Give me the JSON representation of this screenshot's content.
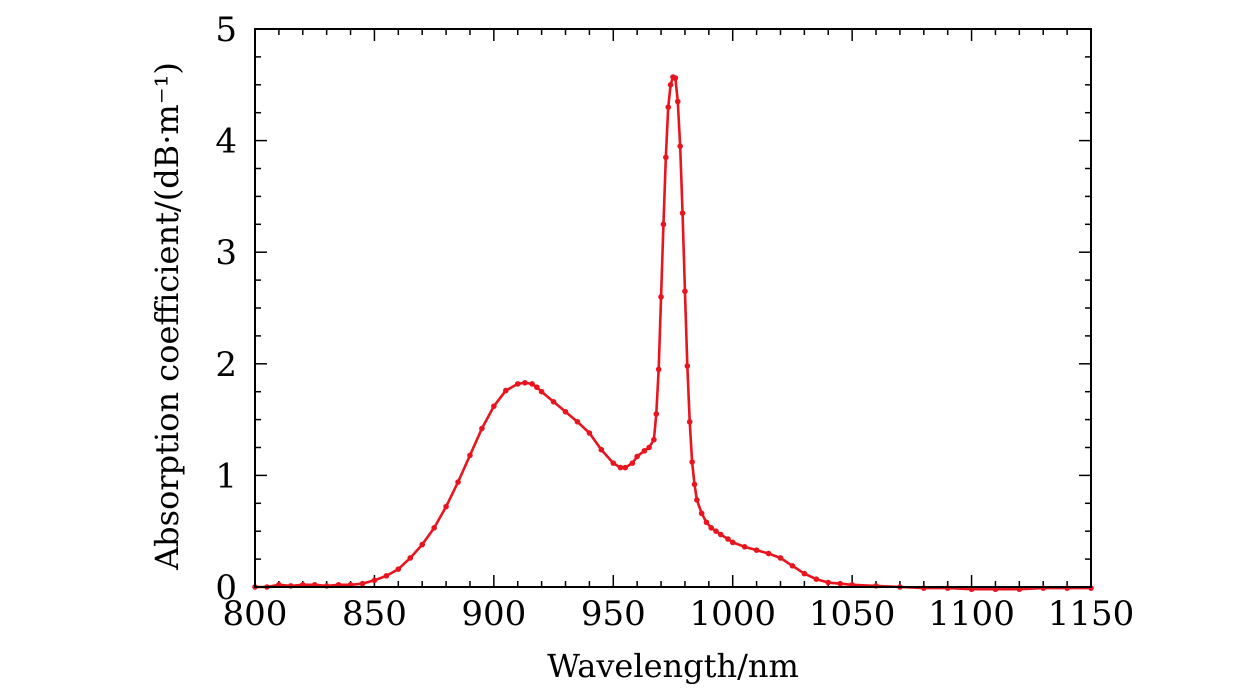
{
  "chart_data": {
    "type": "line",
    "title": "",
    "xlabel": "Wavelength/nm",
    "ylabel": "Absorption coefficient/(dB·m⁻¹)",
    "xlim": [
      800,
      1150
    ],
    "ylim": [
      0,
      5
    ],
    "xticks": [
      "800",
      "850",
      "900",
      "950",
      "1000",
      "1050",
      "1100",
      "1150"
    ],
    "yticks": [
      "0",
      "1",
      "2",
      "3",
      "4",
      "5"
    ],
    "grid": false,
    "legend": "none",
    "series": [
      {
        "color": "#e8141e",
        "marker": "dot",
        "x": [
          800,
          805,
          810,
          815,
          820,
          825,
          830,
          835,
          840,
          845,
          850,
          855,
          860,
          865,
          870,
          875,
          880,
          885,
          890,
          895,
          900,
          905,
          910,
          913,
          916,
          918,
          920,
          925,
          930,
          935,
          940,
          945,
          950,
          953,
          955,
          958,
          960,
          963,
          965,
          967,
          968,
          969,
          970,
          971,
          972,
          973,
          974,
          975,
          976,
          977,
          978,
          979,
          980,
          981,
          982,
          983,
          984,
          985,
          987,
          989,
          991,
          993,
          995,
          998,
          1000,
          1005,
          1010,
          1015,
          1020,
          1025,
          1030,
          1035,
          1040,
          1045,
          1050,
          1060,
          1070,
          1080,
          1090,
          1100,
          1110,
          1120,
          1130,
          1140,
          1150
        ],
        "y": [
          0.0,
          0.0,
          0.02,
          0.01,
          0.02,
          0.02,
          0.01,
          0.02,
          0.02,
          0.03,
          0.06,
          0.1,
          0.16,
          0.26,
          0.38,
          0.53,
          0.72,
          0.94,
          1.18,
          1.42,
          1.62,
          1.76,
          1.82,
          1.83,
          1.82,
          1.79,
          1.75,
          1.66,
          1.57,
          1.48,
          1.38,
          1.23,
          1.11,
          1.07,
          1.07,
          1.11,
          1.17,
          1.22,
          1.25,
          1.32,
          1.55,
          1.95,
          2.6,
          3.25,
          3.85,
          4.3,
          4.5,
          4.57,
          4.56,
          4.35,
          3.95,
          3.35,
          2.65,
          1.98,
          1.48,
          1.12,
          0.92,
          0.78,
          0.66,
          0.58,
          0.53,
          0.5,
          0.47,
          0.43,
          0.4,
          0.36,
          0.33,
          0.3,
          0.26,
          0.19,
          0.12,
          0.07,
          0.04,
          0.03,
          0.02,
          0.01,
          0.0,
          -0.01,
          -0.01,
          -0.02,
          -0.02,
          -0.02,
          -0.01,
          -0.01,
          -0.01
        ]
      }
    ]
  }
}
